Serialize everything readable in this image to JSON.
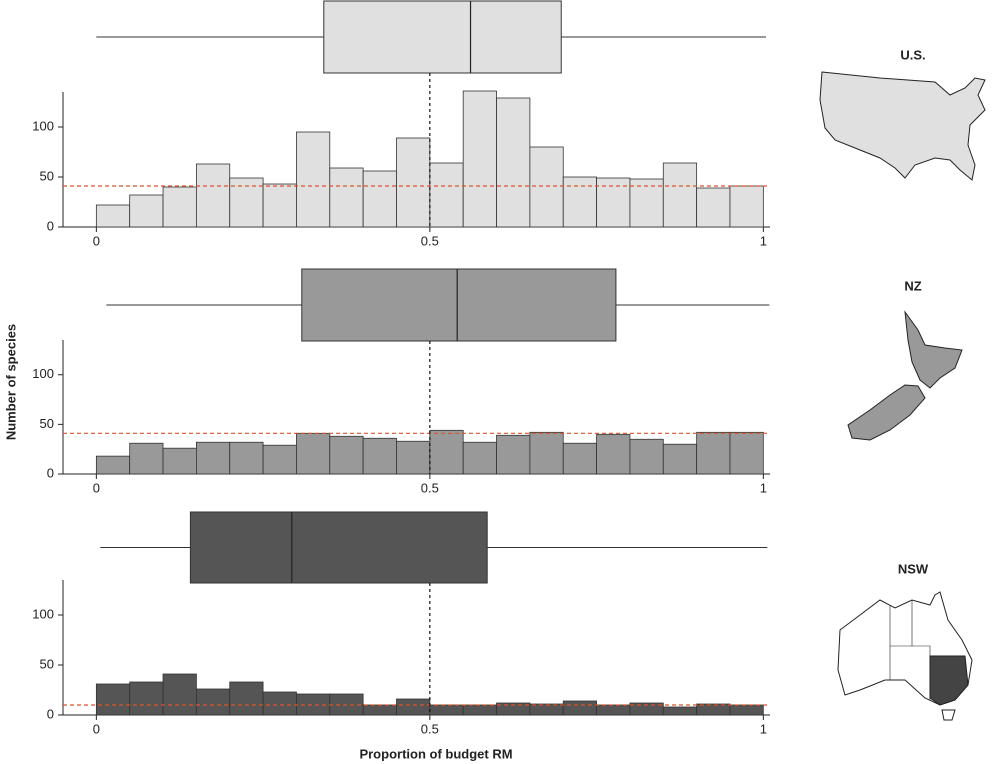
{
  "chart_data": [
    {
      "type": "histogram",
      "title": "U.S.",
      "color": "#e0e0e0",
      "bins": [
        0,
        0.05,
        0.1,
        0.15,
        0.2,
        0.25,
        0.3,
        0.35,
        0.4,
        0.45,
        0.5,
        0.55,
        0.6,
        0.65,
        0.7,
        0.75,
        0.8,
        0.85,
        0.9,
        0.95,
        1
      ],
      "values": [
        22,
        32,
        40,
        63,
        49,
        43,
        95,
        59,
        56,
        89,
        64,
        136,
        129,
        80,
        50,
        49,
        48,
        64,
        39,
        41
      ],
      "boxplot": {
        "min": 0,
        "q1": 0.341,
        "median": 0.561,
        "q3": 0.697,
        "max": 1.004
      },
      "hline": 41,
      "vline": 0.5,
      "xlim": [
        -0.05,
        1.01
      ],
      "ylim": [
        0,
        135
      ],
      "xticks": [
        0,
        0.5,
        1
      ],
      "yticks": [
        0,
        50,
        100
      ]
    },
    {
      "type": "histogram",
      "title": "NZ",
      "color": "#999999",
      "ylabel": "Number of species",
      "bins": [
        0,
        0.05,
        0.1,
        0.15,
        0.2,
        0.25,
        0.3,
        0.35,
        0.4,
        0.45,
        0.5,
        0.55,
        0.6,
        0.65,
        0.7,
        0.75,
        0.8,
        0.85,
        0.9,
        0.95,
        1
      ],
      "values": [
        18,
        31,
        26,
        32,
        32,
        29,
        41,
        38,
        36,
        33,
        44,
        32,
        39,
        42,
        31,
        40,
        35,
        30,
        42,
        42
      ],
      "boxplot": {
        "min": 0.015,
        "q1": 0.308,
        "median": 0.541,
        "q3": 0.779,
        "max": 1.009
      },
      "hline": 41,
      "vline": 0.5,
      "xlim": [
        -0.05,
        1.01
      ],
      "ylim": [
        0,
        135
      ],
      "xticks": [
        0,
        0.5,
        1
      ],
      "yticks": [
        0,
        50,
        100
      ]
    },
    {
      "type": "histogram",
      "title": "NSW",
      "color": "#555555",
      "xlabel": "Proportion of budget RM",
      "bins": [
        0,
        0.05,
        0.1,
        0.15,
        0.2,
        0.25,
        0.3,
        0.35,
        0.4,
        0.45,
        0.5,
        0.55,
        0.6,
        0.65,
        0.7,
        0.75,
        0.8,
        0.85,
        0.9,
        0.95,
        1
      ],
      "values": [
        31,
        33,
        41,
        26,
        33,
        23,
        21,
        21,
        10,
        16,
        10,
        10,
        12,
        11,
        14,
        10,
        12,
        8,
        11,
        10
      ],
      "boxplot": {
        "min": 0.006,
        "q1": 0.141,
        "median": 0.293,
        "q3": 0.586,
        "max": 1.006
      },
      "hline": 10,
      "vline": 0.5,
      "xlim": [
        -0.05,
        1.01
      ],
      "ylim": [
        0,
        135
      ],
      "xticks": [
        0,
        0.5,
        1
      ],
      "yticks": [
        0,
        50,
        100
      ]
    }
  ]
}
